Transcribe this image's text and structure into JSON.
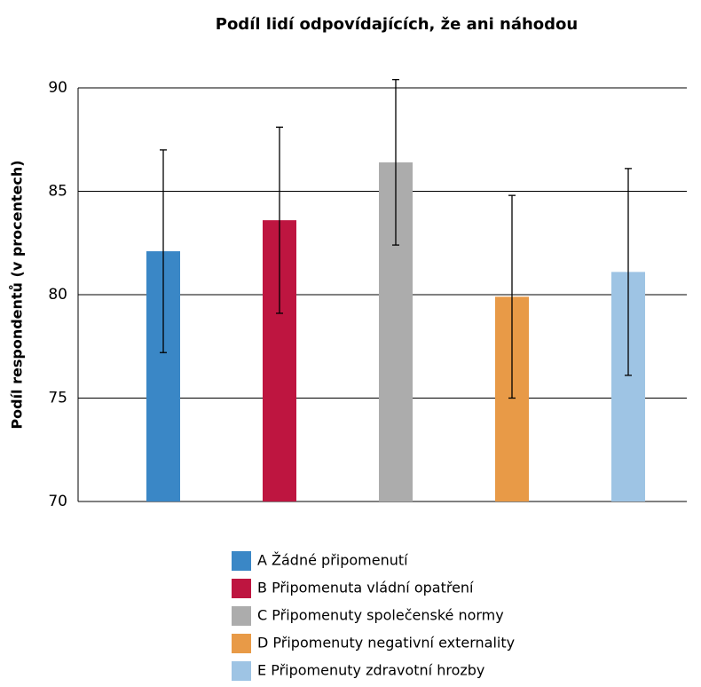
{
  "chart_data": {
    "type": "bar",
    "title": "Podíl lidí odpovídajících, že ani náhodou",
    "y_label": "Podíl respondentů (v procentech)",
    "categories": [
      "A Žádné připomenutí",
      "B Připomenuta vládní opatření",
      "C Připomenuty společenské normy",
      "D Připomenuty negativní externality",
      "E Připomenuty zdravotní hrozby"
    ],
    "values": [
      82.1,
      83.6,
      86.4,
      79.9,
      81.1
    ],
    "errors": [
      4.9,
      4.5,
      4.0,
      4.9,
      5.0
    ],
    "colors": [
      "#3a87c6",
      "#be1540",
      "#acacac",
      "#e89a47",
      "#9ec4e4"
    ],
    "ylim": [
      70,
      90
    ],
    "yticks": [
      70,
      75,
      80,
      85,
      90
    ],
    "grid": true
  }
}
